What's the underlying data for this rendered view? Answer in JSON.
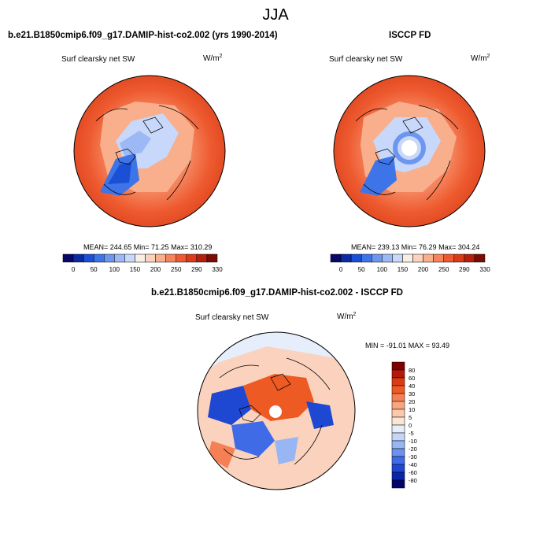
{
  "figure": {
    "title": "JJA"
  },
  "panels": [
    {
      "id": "model",
      "title": "b.e21.B1850cmip6.f09_g17.DAMIP-hist-co2.002 (yrs 1990-2014)",
      "variable": "Surf clearsky net SW",
      "units_base": "W/m",
      "units_exp": "2",
      "stats": {
        "mean": "244.65",
        "min": "71.25",
        "max": "310.29"
      },
      "stats_text": "MEAN= 244.65  Min=  71.25  Max= 310.29"
    },
    {
      "id": "obs",
      "title": "ISCCP FD",
      "variable": "Surf clearsky net SW",
      "units_base": "W/m",
      "units_exp": "2",
      "stats": {
        "mean": "239.13",
        "min": "76.29",
        "max": "304.24"
      },
      "stats_text": "MEAN= 239.13  Min=  76.29  Max= 304.24"
    },
    {
      "id": "diff",
      "title": "b.e21.B1850cmip6.f09_g17.DAMIP-hist-co2.002 - ISCCP FD",
      "variable": "Surf clearsky net SW",
      "units_base": "W/m",
      "units_exp": "2",
      "stats": {
        "min": "-91.01",
        "max": "93.49"
      },
      "stats_text": "MIN = -91.01  MAX =  93.49"
    }
  ],
  "colorbars": {
    "absolute": {
      "orientation": "horizontal",
      "colors": [
        "#08086b",
        "#0a2aa6",
        "#1a4fd6",
        "#3d74e8",
        "#6c96f0",
        "#9cb9f5",
        "#c8d8fa",
        "#f7efe4",
        "#fbd2bd",
        "#f9ae8c",
        "#f5835c",
        "#ee5a2f",
        "#dc3a1a",
        "#b4200e",
        "#7a0c05"
      ],
      "tick_labels": [
        "0",
        "50",
        "100",
        "150",
        "200",
        "250",
        "290",
        "330"
      ]
    },
    "difference": {
      "orientation": "vertical",
      "colors": [
        "#7e0000",
        "#b51a08",
        "#db3a12",
        "#ee5a24",
        "#f58055",
        "#f9a680",
        "#fbc9ac",
        "#fbe6d5",
        "#e6eefb",
        "#c2d6f8",
        "#97b6f3",
        "#6a92ee",
        "#3f6ce6",
        "#1e47d2",
        "#0b24a8",
        "#03036e"
      ],
      "tick_labels": [
        "80",
        "60",
        "40",
        "30",
        "20",
        "10",
        "5",
        "0",
        "-5",
        "-10",
        "-20",
        "-30",
        "-40",
        "-60",
        "-80"
      ]
    }
  },
  "colors": {
    "warm_field": "#ef5a29",
    "cool_field": "#5b8ef0",
    "land_outline": "#000000"
  }
}
